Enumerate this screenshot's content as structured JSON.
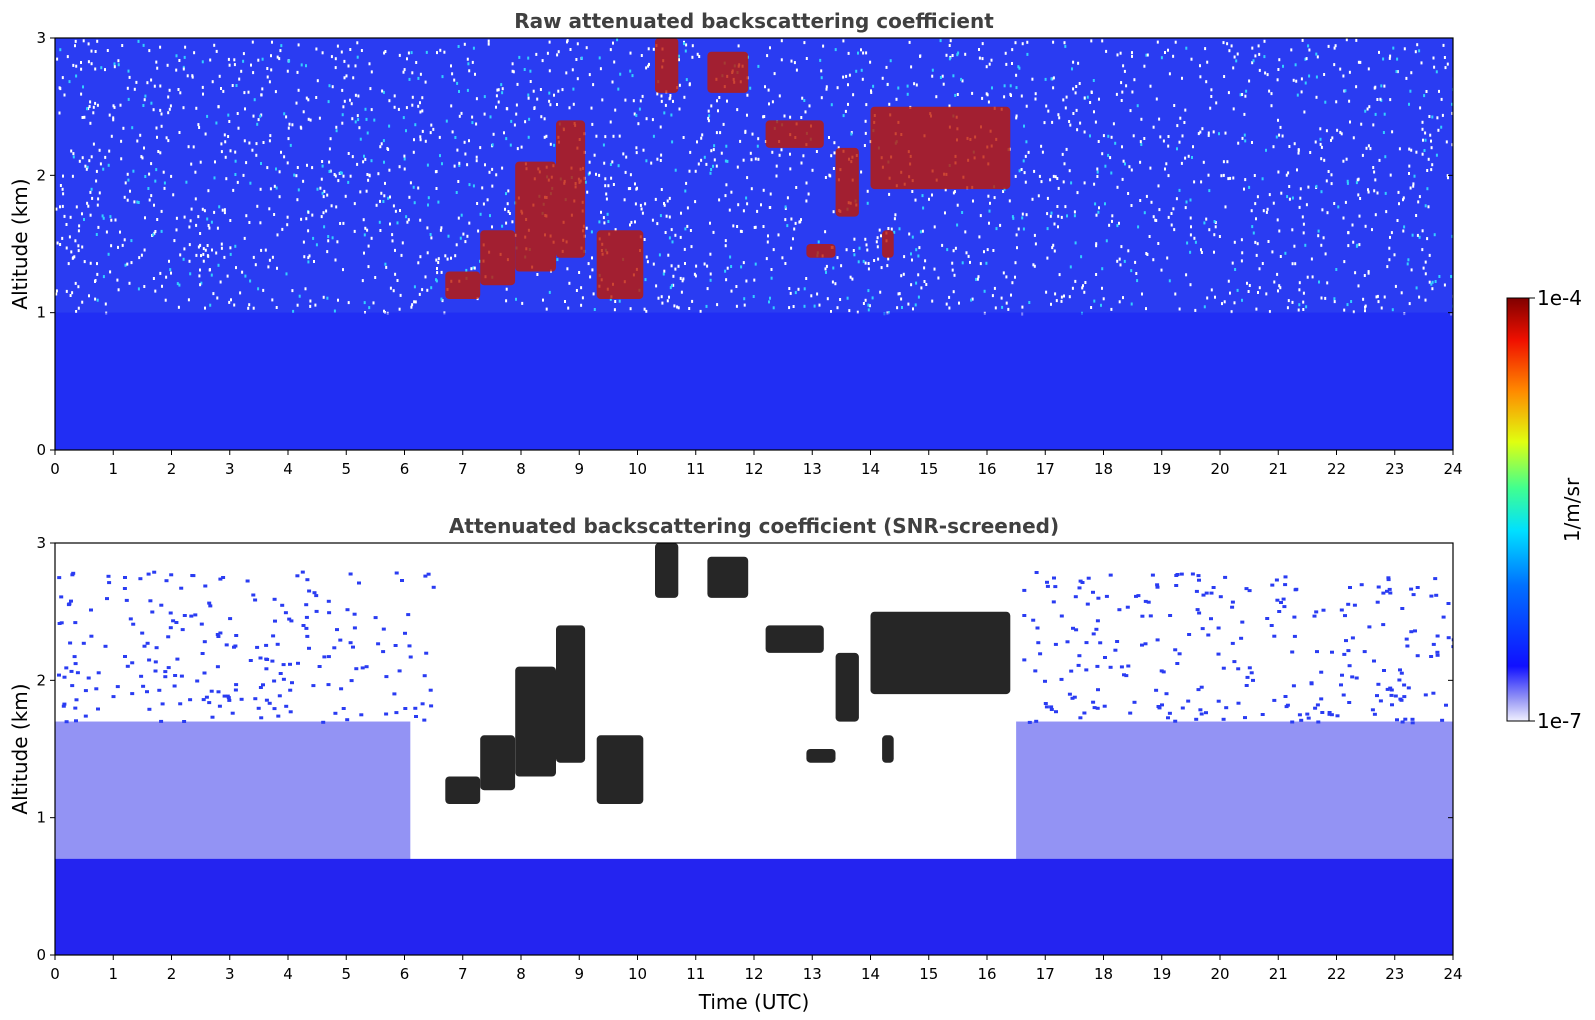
{
  "chart_data": [
    {
      "type": "heatmap",
      "title": "Raw attenuated backscattering coefficient",
      "xlabel": "",
      "ylabel": "Altitude (km)",
      "xlim": [
        0,
        24
      ],
      "ylim": [
        0,
        3
      ],
      "xticks": [
        "0",
        "1",
        "2",
        "3",
        "4",
        "5",
        "6",
        "7",
        "8",
        "9",
        "10",
        "11",
        "12",
        "13",
        "14",
        "15",
        "16",
        "17",
        "18",
        "19",
        "20",
        "21",
        "22",
        "23",
        "24"
      ],
      "yticks": [
        "0",
        "1",
        "2",
        "3"
      ],
      "screened": false,
      "clouds": [
        {
          "x": [
            6.7,
            7.3
          ],
          "y": [
            1.1,
            1.3
          ]
        },
        {
          "x": [
            7.3,
            7.9
          ],
          "y": [
            1.2,
            1.6
          ]
        },
        {
          "x": [
            7.9,
            8.6
          ],
          "y": [
            1.3,
            2.1
          ]
        },
        {
          "x": [
            8.6,
            9.1
          ],
          "y": [
            1.4,
            2.4
          ]
        },
        {
          "x": [
            9.3,
            10.1
          ],
          "y": [
            1.1,
            1.6
          ]
        },
        {
          "x": [
            10.3,
            10.7
          ],
          "y": [
            2.6,
            3.0
          ]
        },
        {
          "x": [
            11.2,
            11.9
          ],
          "y": [
            2.6,
            2.9
          ]
        },
        {
          "x": [
            12.2,
            13.2
          ],
          "y": [
            2.2,
            2.4
          ]
        },
        {
          "x": [
            12.9,
            13.4
          ],
          "y": [
            1.4,
            1.5
          ]
        },
        {
          "x": [
            13.4,
            13.8
          ],
          "y": [
            1.7,
            2.2
          ]
        },
        {
          "x": [
            14.0,
            16.4
          ],
          "y": [
            1.9,
            2.5
          ]
        },
        {
          "x": [
            14.2,
            14.4
          ],
          "y": [
            1.4,
            1.6
          ]
        }
      ]
    },
    {
      "type": "heatmap",
      "title": "Attenuated backscattering coefficient (SNR-screened)",
      "xlabel": "Time (UTC)",
      "ylabel": "Altitude (km)",
      "xlim": [
        0,
        24
      ],
      "ylim": [
        0,
        3
      ],
      "xticks": [
        "0",
        "1",
        "2",
        "3",
        "4",
        "5",
        "6",
        "7",
        "8",
        "9",
        "10",
        "11",
        "12",
        "13",
        "14",
        "15",
        "16",
        "17",
        "18",
        "19",
        "20",
        "21",
        "22",
        "23",
        "24"
      ],
      "yticks": [
        "0",
        "1",
        "2",
        "3"
      ],
      "screened": true,
      "clouds": [
        {
          "x": [
            6.7,
            7.3
          ],
          "y": [
            1.1,
            1.3
          ]
        },
        {
          "x": [
            7.3,
            7.9
          ],
          "y": [
            1.2,
            1.6
          ]
        },
        {
          "x": [
            7.9,
            8.6
          ],
          "y": [
            1.3,
            2.1
          ]
        },
        {
          "x": [
            8.6,
            9.1
          ],
          "y": [
            1.4,
            2.4
          ]
        },
        {
          "x": [
            9.3,
            10.1
          ],
          "y": [
            1.1,
            1.6
          ]
        },
        {
          "x": [
            10.3,
            10.7
          ],
          "y": [
            2.6,
            3.0
          ]
        },
        {
          "x": [
            11.2,
            11.9
          ],
          "y": [
            2.6,
            2.9
          ]
        },
        {
          "x": [
            12.2,
            13.2
          ],
          "y": [
            2.2,
            2.4
          ]
        },
        {
          "x": [
            12.9,
            13.4
          ],
          "y": [
            1.4,
            1.5
          ]
        },
        {
          "x": [
            13.4,
            13.8
          ],
          "y": [
            1.7,
            2.2
          ]
        },
        {
          "x": [
            14.0,
            16.4
          ],
          "y": [
            1.9,
            2.5
          ]
        },
        {
          "x": [
            14.2,
            14.4
          ],
          "y": [
            1.4,
            1.6
          ]
        }
      ]
    }
  ],
  "colorbar": {
    "label": "1/m/sr",
    "max_label": "1e-4",
    "min_label": "1e-7",
    "range": [
      1e-07,
      0.0001
    ],
    "scale": "log",
    "colormap": "jet"
  }
}
